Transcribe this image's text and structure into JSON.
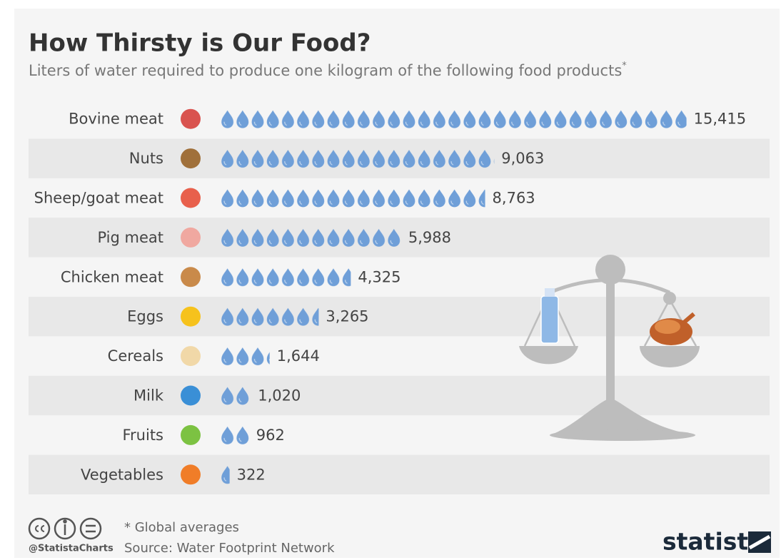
{
  "chart_data": {
    "type": "pictogram-bar",
    "title": "How Thirsty is Our Food?",
    "subtitle": "Liters of water required to produce one kilogram of the following food products",
    "subtitle_mark": "*",
    "categories": [
      "Bovine meat",
      "Nuts",
      "Sheep/goat meat",
      "Pig meat",
      "Chicken meat",
      "Eggs",
      "Cereals",
      "Milk",
      "Fruits",
      "Vegetables"
    ],
    "values": [
      15415,
      9063,
      8763,
      5988,
      4325,
      3265,
      1644,
      1020,
      962,
      322
    ],
    "value_labels": [
      "15,415",
      "9,063",
      "8,763",
      "5,988",
      "4,325",
      "3,265",
      "1,644",
      "1,020",
      "962",
      "322"
    ],
    "color": "#6f9fd8",
    "note": "* Global averages",
    "source": "Source: Water Footprint Network",
    "credit": "@StatistaCharts",
    "brand": "statista"
  }
}
